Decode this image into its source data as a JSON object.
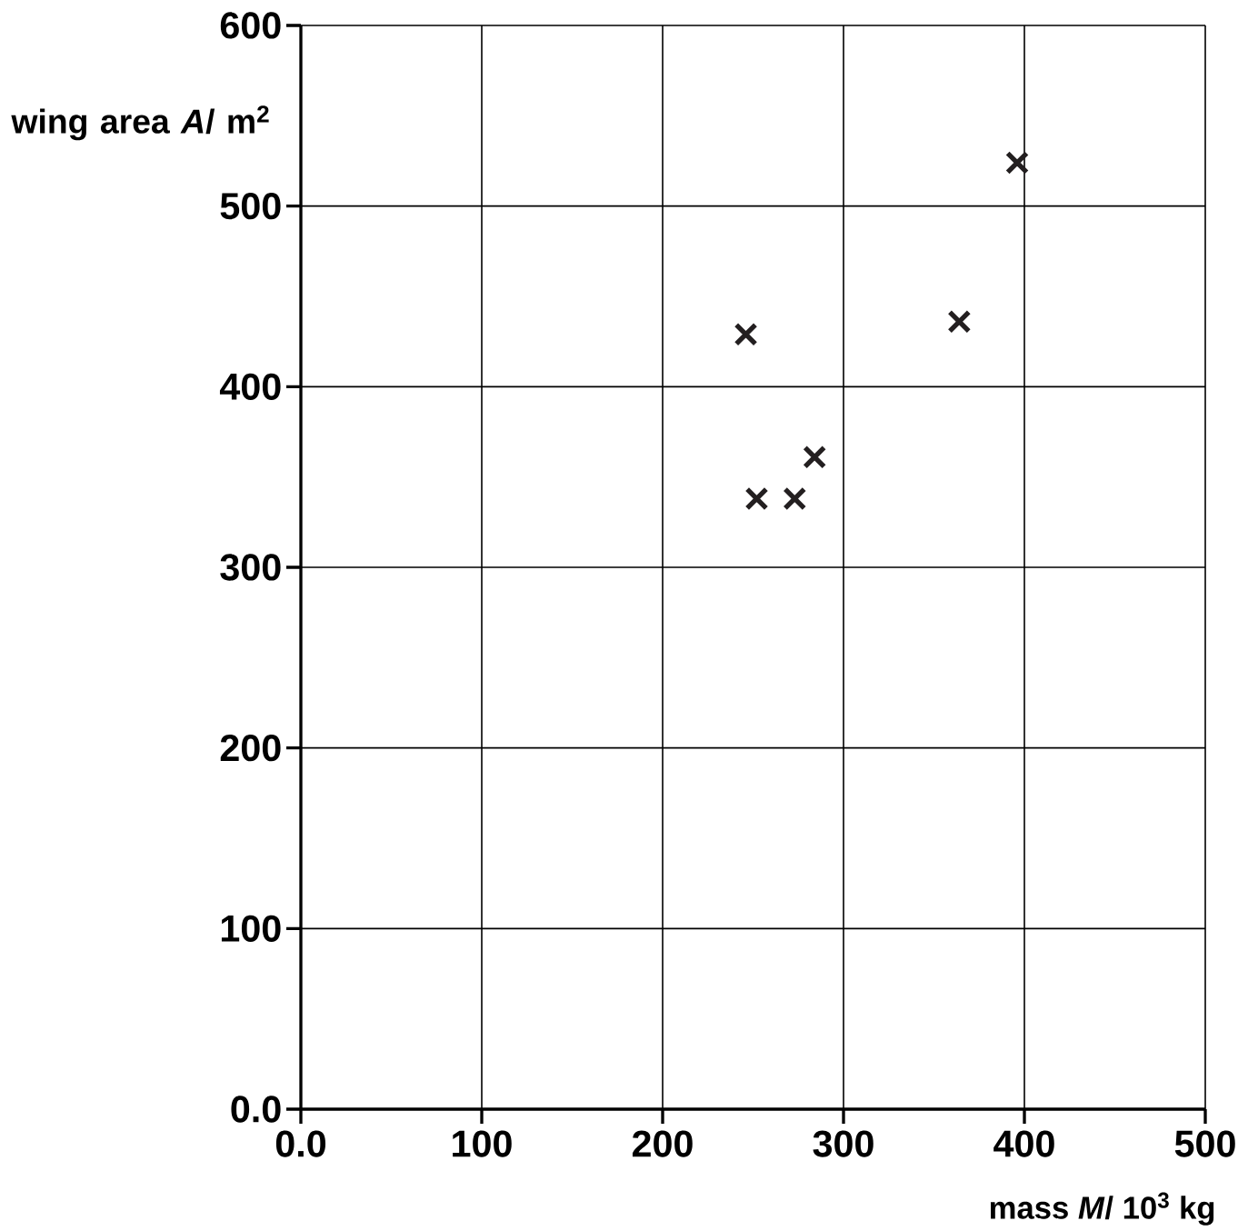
{
  "chart_data": {
    "type": "scatter",
    "xlabel": "mass *M*/ 10$^{3}$ kg",
    "ylabel": "wing area *A*/ m$^{2}$",
    "x": [
      246,
      252,
      273,
      284,
      364,
      396
    ],
    "values": [
      429,
      338,
      338,
      361,
      436,
      524
    ],
    "color": "#231f20",
    "marker": "cross",
    "xlim": [
      0,
      500
    ],
    "ylim": [
      0,
      600
    ],
    "xticks": [
      {
        "value": 0,
        "label": "0.0"
      },
      100,
      200,
      300,
      400,
      500
    ],
    "yticks": [
      {
        "value": 0,
        "label": "0.0"
      },
      100,
      200,
      300,
      400,
      500,
      600
    ],
    "grid": true
  }
}
